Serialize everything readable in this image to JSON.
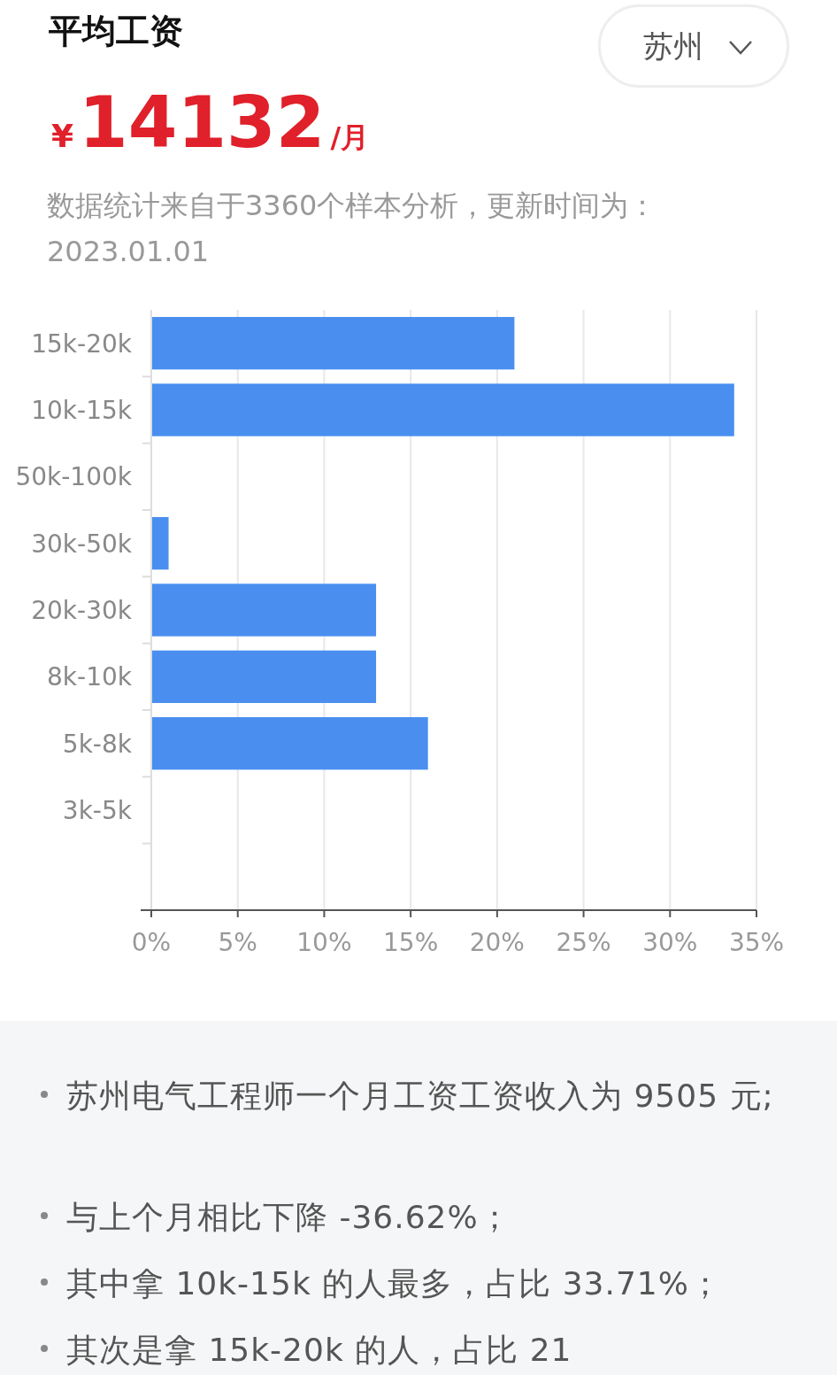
{
  "chart_data": {
    "type": "bar",
    "orientation": "horizontal",
    "title": "平均工资",
    "annotations": [
      "苏州",
      "¥",
      "14132",
      "/月",
      "数据统计来自于3360个样本分析，更新时间为：2023.01.01",
      "苏州电气工程师一个月工资工资收入为 9505 元;",
      "与上个月相比下降 -36.62%；",
      "其中拿 10k-15k 的人最多，占比 33.71%；",
      "其次是拿 15k-20k 的人，占比 21"
    ],
    "categories": [
      "15k-20k",
      "10k-15k",
      "50k-100k",
      "30k-50k",
      "20k-30k",
      "8k-10k",
      "5k-8k",
      "3k-5k",
      null
    ],
    "values": [
      21,
      33.71,
      0,
      1,
      13,
      13,
      16,
      0,
      0
    ],
    "color": "#4a8ff0",
    "xlim": [
      0,
      35
    ],
    "xticks": [
      {
        "value": 0,
        "label": "0%"
      },
      {
        "value": 5,
        "label": "5%"
      },
      {
        "value": 10,
        "label": "10%"
      },
      {
        "value": 15,
        "label": "15%"
      },
      {
        "value": 20,
        "label": "20%"
      },
      {
        "value": 25,
        "label": "25%"
      },
      {
        "value": 30,
        "label": "30%"
      },
      {
        "value": 35,
        "label": "35%"
      }
    ],
    "grid": "x"
  }
}
